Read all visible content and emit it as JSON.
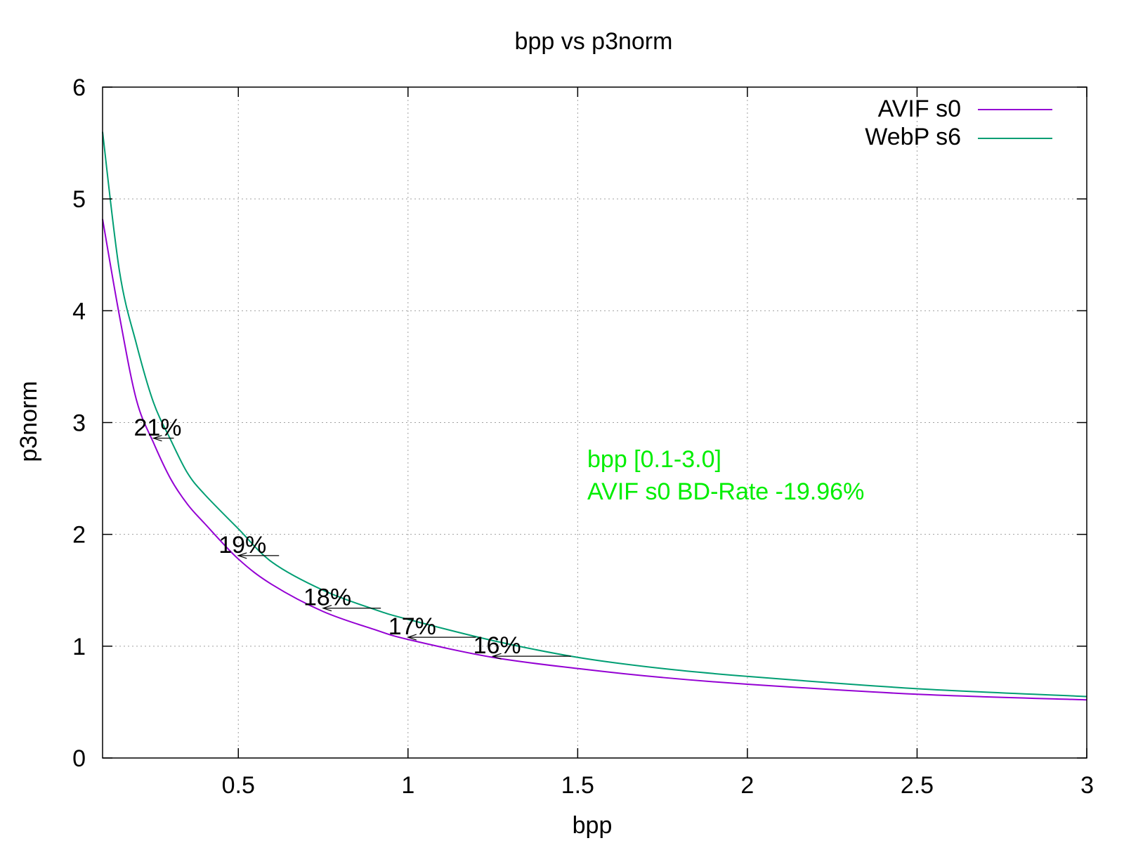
{
  "chart_data": {
    "type": "line",
    "title": "bpp vs p3norm",
    "xlabel": "bpp",
    "ylabel": "p3norm",
    "xlim": [
      0.1,
      3.0
    ],
    "ylim": [
      0,
      6
    ],
    "xticks": [
      0.5,
      1,
      1.5,
      2,
      2.5,
      3
    ],
    "xtick_labels": [
      "0.5",
      "1",
      "1.5",
      "2",
      "2.5",
      "3"
    ],
    "yticks": [
      0,
      1,
      2,
      3,
      4,
      5,
      6
    ],
    "ytick_labels": [
      "0",
      "1",
      "2",
      "3",
      "4",
      "5",
      "6"
    ],
    "grid": true,
    "legend_position": "top-right",
    "series": [
      {
        "name": "AVIF s0",
        "color": "#9400d3",
        "x": [
          0.1,
          0.15,
          0.2,
          0.25,
          0.3,
          0.35,
          0.4,
          0.5,
          0.6,
          0.75,
          0.9,
          1.0,
          1.25,
          1.5,
          1.75,
          2.0,
          2.5,
          3.0
        ],
        "y": [
          4.82,
          3.95,
          3.2,
          2.82,
          2.5,
          2.27,
          2.1,
          1.78,
          1.55,
          1.31,
          1.15,
          1.06,
          0.9,
          0.8,
          0.72,
          0.66,
          0.57,
          0.52
        ]
      },
      {
        "name": "WebP s6",
        "color": "#009e73",
        "x": [
          0.1,
          0.15,
          0.2,
          0.25,
          0.3,
          0.35,
          0.4,
          0.5,
          0.6,
          0.75,
          0.9,
          1.0,
          1.25,
          1.5,
          1.75,
          2.0,
          2.5,
          3.0
        ],
        "y": [
          5.6,
          4.35,
          3.7,
          3.18,
          2.85,
          2.55,
          2.36,
          2.05,
          1.75,
          1.5,
          1.33,
          1.24,
          1.05,
          0.9,
          0.8,
          0.73,
          0.62,
          0.55
        ]
      }
    ],
    "gap_annotations": [
      {
        "label": "21%",
        "y": 2.86,
        "x_from": 0.31,
        "x_to": 0.25
      },
      {
        "label": "19%",
        "y": 1.81,
        "x_from": 0.62,
        "x_to": 0.5
      },
      {
        "label": "18%",
        "y": 1.34,
        "x_from": 0.92,
        "x_to": 0.75
      },
      {
        "label": "17%",
        "y": 1.08,
        "x_from": 1.2,
        "x_to": 1.0
      },
      {
        "label": "16%",
        "y": 0.91,
        "x_from": 1.48,
        "x_to": 1.25
      }
    ],
    "annotation": {
      "lines": [
        "bpp [0.1-3.0]",
        "AVIF s0 BD-Rate -19.96%"
      ],
      "color": "#00ee00"
    }
  }
}
